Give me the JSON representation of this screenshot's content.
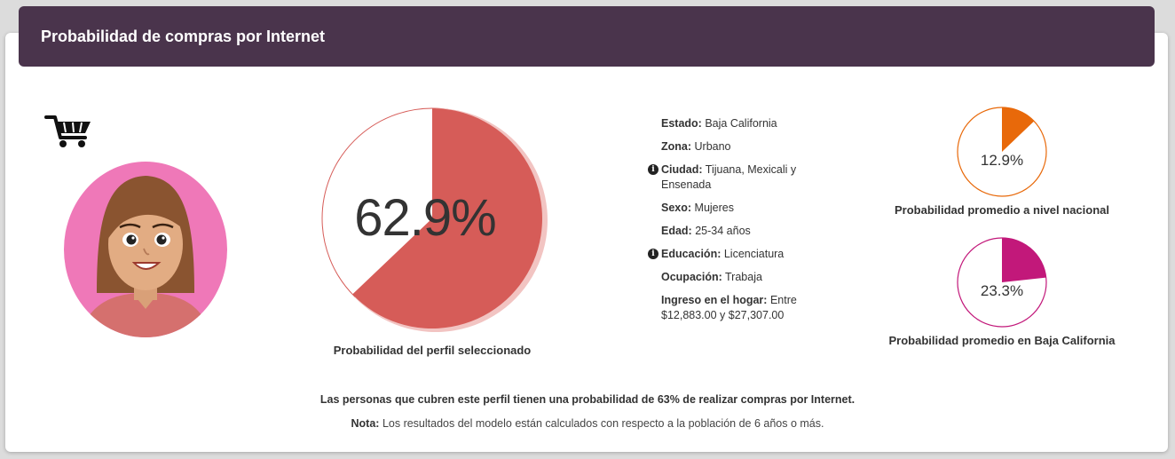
{
  "header": {
    "title": "Probabilidad de compras por Internet"
  },
  "icons": {
    "cart": "shopping-cart-icon",
    "info": "info-icon",
    "avatar": "woman-avatar"
  },
  "main": {
    "value": 62.9,
    "label": "62.9%",
    "caption": "Probabilidad del perfil seleccionado",
    "color": "#d65c58"
  },
  "details": [
    {
      "label": "Estado:",
      "value": "Baja California",
      "info": false
    },
    {
      "label": "Zona:",
      "value": "Urbano",
      "info": false
    },
    {
      "label": "Ciudad:",
      "value": "Tijuana, Mexicali y Ensenada",
      "info": true
    },
    {
      "label": "Sexo:",
      "value": "Mujeres",
      "info": false
    },
    {
      "label": "Edad:",
      "value": "25-34 años",
      "info": false
    },
    {
      "label": "Educación:",
      "value": "Licenciatura",
      "info": true
    },
    {
      "label": "Ocupación:",
      "value": "Trabaja",
      "info": false
    },
    {
      "label": "Ingreso en el hogar:",
      "value": "Entre $12,883.00 y $27,307.00",
      "info": false
    }
  ],
  "national": {
    "value": 12.9,
    "label": "12.9%",
    "caption": "Probabilidad promedio a nivel nacional",
    "color": "#e8690a"
  },
  "state": {
    "value": 23.3,
    "label": "23.3%",
    "caption": "Probabilidad promedio en Baja California",
    "color": "#c2187a"
  },
  "summary": "Las personas que cubren este perfil tienen una probabilidad de 63% de realizar compras por Internet.",
  "note": {
    "label": "Nota:",
    "text": "Los resultados del modelo están calculados con respecto a la población de 6 años o más."
  }
}
